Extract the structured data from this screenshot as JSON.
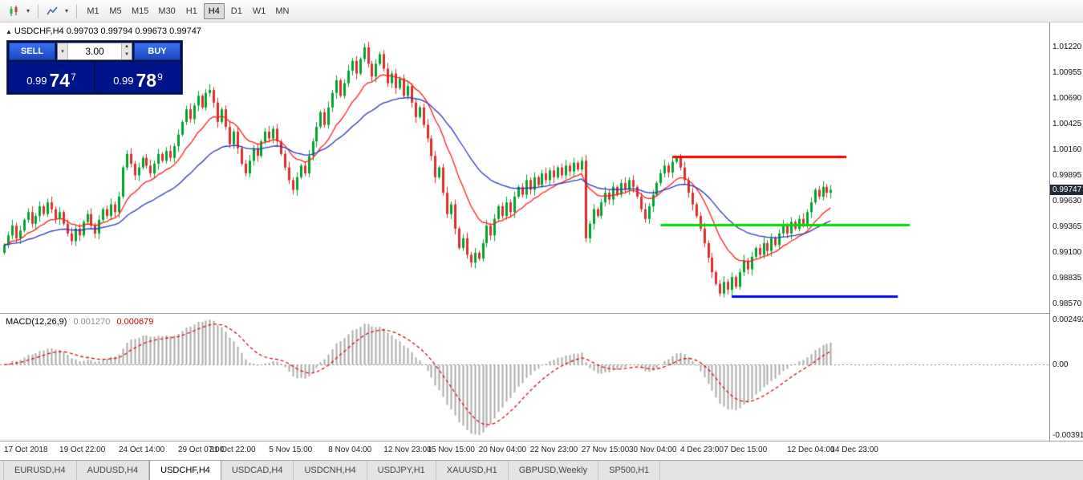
{
  "toolbar": {
    "timeframes": [
      "M1",
      "M5",
      "M15",
      "M30",
      "H1",
      "H4",
      "D1",
      "W1",
      "MN"
    ],
    "active_timeframe": "H4"
  },
  "ui": {
    "dropdown_glyph": "▾",
    "spin_up": "▲",
    "spin_down": "▼"
  },
  "chart_header": {
    "marker": "▲",
    "title": "USDCHF,H4 0.99703 0.99794 0.99673 0.99747"
  },
  "trade_panel": {
    "sell_label": "SELL",
    "buy_label": "BUY",
    "volume": "3.00",
    "sell_price": {
      "prefix": "0.99",
      "big": "74",
      "sup": "7"
    },
    "buy_price": {
      "prefix": "0.99",
      "big": "78",
      "sup": "9"
    }
  },
  "price_axis": {
    "current": "0.99747"
  },
  "macd_panel": {
    "title": "MACD(12,26,9)",
    "value": "0.001270",
    "signal": "0.000679"
  },
  "tabs": [
    {
      "label": "EURUSD,H4",
      "active": false
    },
    {
      "label": "AUDUSD,H4",
      "active": false
    },
    {
      "label": "USDCHF,H4",
      "active": true
    },
    {
      "label": "USDCAD,H4",
      "active": false
    },
    {
      "label": "USDCNH,H4",
      "active": false
    },
    {
      "label": "USDJPY,H1",
      "active": false
    },
    {
      "label": "XAUUSD,H1",
      "active": false
    },
    {
      "label": "GBPUSD,Weekly",
      "active": false
    },
    {
      "label": "SP500,H1",
      "active": false
    }
  ],
  "chart_data": {
    "type": "candlestick",
    "symbol": "USDCHF",
    "timeframe": "H4",
    "pip": 0.0001,
    "ylim": [
      0.9857,
      1.0122
    ],
    "last_price": 0.99747,
    "open_first_pips": 9910,
    "closes_pips": [
      9918,
      9928,
      9938,
      9925,
      9933,
      9944,
      9952,
      9940,
      9948,
      9958,
      9950,
      9962,
      9955,
      9945,
      9952,
      9940,
      9930,
      9922,
      9935,
      9928,
      9942,
      9950,
      9938,
      9930,
      9944,
      9955,
      9948,
      9960,
      9952,
      9968,
      9998,
      10012,
      10002,
      9990,
      9998,
      10008,
      10000,
      9992,
      10002,
      10012,
      10005,
      10015,
      10008,
      10020,
      10032,
      10045,
      10058,
      10048,
      10062,
      10072,
      10060,
      10075,
      10078,
      10065,
      10045,
      10058,
      10040,
      10022,
      10035,
      10018,
      10002,
      9992,
      10005,
      10018,
      10010,
      10025,
      10035,
      10028,
      10038,
      10025,
      10012,
      9998,
      9985,
      9975,
      9988,
      10000,
      9992,
      10010,
      10025,
      10040,
      10055,
      10042,
      10060,
      10075,
      10088,
      10072,
      10085,
      10098,
      10108,
      10095,
      10110,
      10122,
      10105,
      10092,
      10105,
      10115,
      10100,
      10085,
      10095,
      10080,
      10090,
      10072,
      10082,
      10065,
      10050,
      10060,
      10042,
      10028,
      10010,
      9988,
      9998,
      9972,
      9950,
      9960,
      9935,
      9915,
      9925,
      9908,
      9900,
      9910,
      9904,
      9920,
      9938,
      9928,
      9945,
      9958,
      9948,
      9962,
      9952,
      9968,
      9978,
      9970,
      9985,
      9975,
      9988,
      9980,
      9992,
      9985,
      9995,
      9988,
      9998,
      9990,
      10000,
      9994,
      10003,
      9996,
      10005,
      9925,
      9940,
      9955,
      9948,
      9962,
      9972,
      9965,
      9978,
      9970,
      9982,
      9975,
      9985,
      9978,
      9968,
      9955,
      9945,
      9958,
      9970,
      9982,
      9992,
      10000,
      9993,
      10004,
      10008,
      9998,
      9985,
      9972,
      9960,
      9948,
      9935,
      9920,
      9905,
      9890,
      9878,
      9868,
      9880,
      9872,
      9885,
      9875,
      9890,
      9902,
      9893,
      9906,
      9915,
      9908,
      9920,
      9912,
      9925,
      9918,
      9930,
      9938,
      9930,
      9942,
      9935,
      9945,
      9940,
      9952,
      9962,
      9975,
      9968,
      9978,
      9972,
      9975
    ],
    "price_ticks": [
      {
        "label": "1.01220",
        "value": 1.0122
      },
      {
        "label": "1.00955",
        "value": 1.00955
      },
      {
        "label": "1.00690",
        "value": 1.0069
      },
      {
        "label": "1.00425",
        "value": 1.00425
      },
      {
        "label": "1.00160",
        "value": 1.0016
      },
      {
        "label": "0.99895",
        "value": 0.99895
      },
      {
        "label": "0.99630",
        "value": 0.9963
      },
      {
        "label": "0.99365",
        "value": 0.99365
      },
      {
        "label": "0.99100",
        "value": 0.991
      },
      {
        "label": "0.98835",
        "value": 0.98835
      },
      {
        "label": "0.98570",
        "value": 0.9857
      }
    ],
    "time_ticks": [
      {
        "label": "17 Oct 2018",
        "i": 0
      },
      {
        "label": "19 Oct 22:00",
        "i": 14
      },
      {
        "label": "24 Oct 14:00",
        "i": 29
      },
      {
        "label": "29 Oct 07:00",
        "i": 44
      },
      {
        "label": "31 Oct 22:00",
        "i": 52
      },
      {
        "label": "5 Nov 15:00",
        "i": 67
      },
      {
        "label": "8 Nov 04:00",
        "i": 82
      },
      {
        "label": "12 Nov 23:00",
        "i": 96
      },
      {
        "label": "15 Nov 15:00",
        "i": 107
      },
      {
        "label": "20 Nov 04:00",
        "i": 120
      },
      {
        "label": "22 Nov 23:00",
        "i": 133
      },
      {
        "label": "27 Nov 15:00",
        "i": 146
      },
      {
        "label": "30 Nov 04:00",
        "i": 158
      },
      {
        "label": "4 Dec 23:00",
        "i": 171
      },
      {
        "label": "7 Dec 15:00",
        "i": 182
      },
      {
        "label": "12 Dec 04:00",
        "i": 198
      },
      {
        "label": "14 Dec 23:00",
        "i": 209
      }
    ],
    "moving_averages": [
      {
        "name": "ma-fast",
        "period": 13,
        "color": "#ff1e1e"
      },
      {
        "name": "ma-slow",
        "period": 34,
        "color": "#2a36c0"
      }
    ],
    "hlines": [
      {
        "name": "resistance-line",
        "color": "#ff0000",
        "price": 1.0009,
        "i1": 169,
        "i2": 213
      },
      {
        "name": "support-line",
        "color": "#00dd00",
        "price": 0.9939,
        "i1": 166,
        "i2": 229
      },
      {
        "name": "lower-support-line",
        "color": "#0000ff",
        "price": 0.9865,
        "i1": 184,
        "i2": 226
      }
    ],
    "macd": {
      "params": [
        12,
        26,
        9
      ],
      "value": 0.00127,
      "signal_value": 0.000679,
      "histogram_color": "#ababab",
      "signal_color": "#d40000",
      "ticks": [
        {
          "label": "0.002492",
          "value": 0.002492,
          "pos": "max"
        },
        {
          "label": "0.00",
          "value": 0,
          "pos": "zero"
        },
        {
          "label": "-0.003913",
          "value": -0.003913,
          "pos": "min"
        }
      ]
    },
    "colors": {
      "up": "#00a32e",
      "down": "#d93030",
      "background": "#ffffff"
    }
  }
}
